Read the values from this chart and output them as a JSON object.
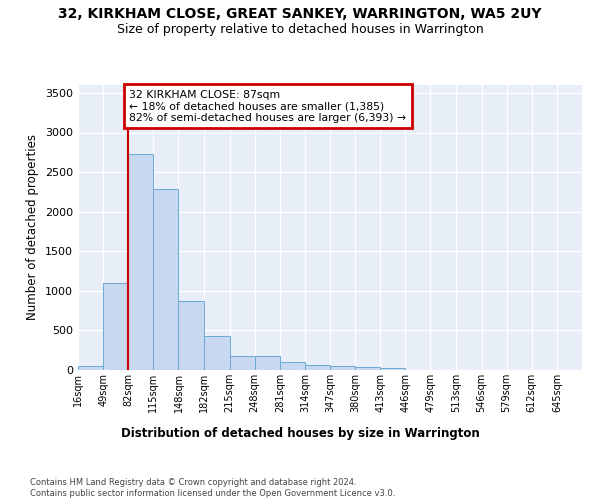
{
  "title1": "32, KIRKHAM CLOSE, GREAT SANKEY, WARRINGTON, WA5 2UY",
  "title2": "Size of property relative to detached houses in Warrington",
  "xlabel": "Distribution of detached houses by size in Warrington",
  "ylabel": "Number of detached properties",
  "bar_color": "#c8d8f0",
  "bar_edge_color": "#6aaad4",
  "bg_color": "#e8eef8",
  "grid_color": "#ffffff",
  "annotation_line1": "32 KIRKHAM CLOSE: 87sqm",
  "annotation_line2": "← 18% of detached houses are smaller (1,385)",
  "annotation_line3": "82% of semi-detached houses are larger (6,393) →",
  "vline_color": "#cc0000",
  "annotation_box_edgecolor": "#cc0000",
  "bin_edges": [
    16,
    49,
    82,
    115,
    148,
    182,
    215,
    248,
    281,
    314,
    347,
    380,
    413,
    446,
    479,
    513,
    546,
    579,
    612,
    645,
    678
  ],
  "counts": [
    50,
    1100,
    2730,
    2290,
    870,
    430,
    175,
    175,
    95,
    65,
    50,
    35,
    25,
    0,
    0,
    0,
    0,
    0,
    0,
    0
  ],
  "ylim": [
    0,
    3600
  ],
  "yticks": [
    0,
    500,
    1000,
    1500,
    2000,
    2500,
    3000,
    3500
  ],
  "footer": "Contains HM Land Registry data © Crown copyright and database right 2024.\nContains public sector information licensed under the Open Government Licence v3.0."
}
